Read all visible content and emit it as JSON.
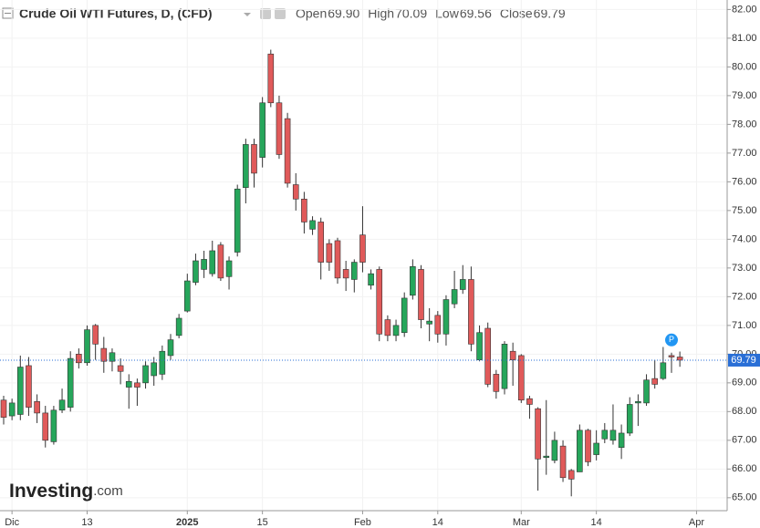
{
  "chart_data": {
    "type": "candlestick",
    "title": "Crude Oil WTI Futures, D, (CFD)",
    "header": [
      {
        "label": "Open",
        "value": "69.90"
      },
      {
        "label": "High",
        "value": "70.09"
      },
      {
        "label": "Low",
        "value": "69.56"
      },
      {
        "label": "Close",
        "value": "69.79"
      }
    ],
    "categories": [
      null,
      "Dic",
      null,
      null,
      null,
      null,
      null,
      null,
      null,
      null,
      "13",
      null,
      null,
      null,
      null,
      null,
      null,
      null,
      null,
      null,
      null,
      null,
      "2025",
      null,
      null,
      null,
      null,
      null,
      null,
      null,
      null,
      "15",
      null,
      null,
      null,
      null,
      null,
      null,
      null,
      null,
      null,
      null,
      null,
      "Feb",
      null,
      null,
      null,
      null,
      null,
      null,
      null,
      null,
      "14",
      null,
      null,
      null,
      null,
      null,
      null,
      null,
      null,
      null,
      "Mar",
      null,
      null,
      null,
      null,
      null,
      null,
      null,
      null,
      "14",
      null,
      null,
      null,
      null,
      null,
      null,
      null,
      null,
      null,
      null,
      null,
      "Apr"
    ],
    "open": [
      68.4,
      67.85,
      67.9,
      69.6,
      68.35,
      67.95,
      66.95,
      68.05,
      68.15,
      70.0,
      69.7,
      71.0,
      70.2,
      69.75,
      69.6,
      68.85,
      69.0,
      69.0,
      69.25,
      69.3,
      69.95,
      70.65,
      71.5,
      72.5,
      72.95,
      72.8,
      73.8,
      72.7,
      73.55,
      75.8,
      77.3,
      76.85,
      80.45,
      78.75,
      78.2,
      75.9,
      75.4,
      74.35,
      74.6,
      73.85,
      73.95,
      72.95,
      72.6,
      74.15,
      72.4,
      72.95,
      71.2,
      70.65,
      70.75,
      72.05,
      72.95,
      71.05,
      71.35,
      70.7,
      71.75,
      72.25,
      72.6,
      69.8,
      70.9,
      69.3,
      68.8,
      70.1,
      69.95,
      68.45,
      68.1,
      66.4,
      66.3,
      66.8,
      65.95,
      65.9,
      67.35,
      66.5,
      67.05,
      67.0,
      66.75,
      67.25,
      68.3,
      68.3,
      69.15,
      69.15,
      69.95,
      69.9,
      null,
      null
    ],
    "high": [
      68.55,
      68.45,
      69.95,
      69.9,
      68.6,
      68.2,
      68.2,
      68.8,
      70.1,
      70.2,
      71.0,
      71.05,
      70.6,
      70.2,
      69.85,
      69.3,
      69.15,
      69.75,
      69.9,
      70.3,
      70.7,
      71.4,
      72.8,
      73.5,
      73.6,
      73.95,
      73.9,
      73.4,
      75.9,
      77.5,
      77.5,
      78.95,
      80.6,
      79.0,
      78.4,
      76.3,
      75.65,
      74.8,
      74.75,
      74.0,
      74.05,
      73.25,
      73.3,
      75.15,
      72.95,
      73.05,
      71.35,
      71.2,
      72.15,
      73.3,
      73.1,
      71.6,
      71.5,
      72.05,
      72.9,
      73.1,
      73.05,
      71.0,
      71.1,
      69.45,
      70.45,
      70.4,
      70.0,
      68.55,
      68.15,
      68.4,
      67.3,
      67.0,
      66.0,
      67.55,
      67.4,
      67.35,
      67.6,
      68.25,
      67.55,
      68.5,
      68.6,
      69.3,
      69.8,
      70.25,
      70.05,
      70.09,
      null,
      null
    ],
    "low": [
      67.55,
      67.7,
      67.7,
      67.85,
      67.6,
      66.75,
      66.85,
      67.95,
      68.0,
      69.5,
      69.6,
      69.8,
      69.35,
      69.4,
      68.95,
      68.1,
      68.2,
      68.8,
      68.9,
      69.1,
      69.8,
      70.55,
      71.45,
      72.4,
      72.65,
      72.7,
      72.55,
      72.25,
      73.4,
      75.25,
      75.8,
      76.5,
      78.6,
      76.8,
      75.8,
      75.0,
      74.2,
      74.15,
      72.6,
      72.9,
      72.45,
      72.2,
      72.15,
      72.85,
      72.25,
      70.45,
      70.45,
      70.45,
      70.6,
      71.9,
      70.9,
      70.45,
      70.4,
      70.3,
      71.6,
      72.1,
      70.1,
      69.75,
      68.85,
      68.45,
      68.6,
      68.9,
      68.3,
      67.75,
      65.25,
      65.8,
      66.2,
      65.55,
      65.05,
      65.9,
      66.1,
      66.3,
      66.9,
      66.85,
      66.35,
      67.15,
      67.5,
      68.2,
      68.8,
      69.1,
      69.35,
      69.56,
      null,
      null
    ],
    "close": [
      67.8,
      68.3,
      69.55,
      68.15,
      67.95,
      67.0,
      68.05,
      68.4,
      69.85,
      69.7,
      70.85,
      70.35,
      69.75,
      70.05,
      69.4,
      69.05,
      68.85,
      69.6,
      69.7,
      70.1,
      70.5,
      71.25,
      72.55,
      73.25,
      73.3,
      73.6,
      72.65,
      73.25,
      75.75,
      77.3,
      76.3,
      78.75,
      78.75,
      76.95,
      75.95,
      75.4,
      74.6,
      74.65,
      73.2,
      73.2,
      72.65,
      72.65,
      73.2,
      73.2,
      72.8,
      70.7,
      70.65,
      71.0,
      71.95,
      73.05,
      71.2,
      71.15,
      70.7,
      71.9,
      72.25,
      72.6,
      70.35,
      70.75,
      68.95,
      68.7,
      70.35,
      69.8,
      68.4,
      68.25,
      66.35,
      66.45,
      67.0,
      65.7,
      65.65,
      67.35,
      66.25,
      66.9,
      67.35,
      67.35,
      67.25,
      68.25,
      68.35,
      69.1,
      68.95,
      69.7,
      69.9,
      69.79,
      null,
      null
    ],
    "up_color": "#26a65b",
    "down_color": "#e05a5a",
    "last_price": 69.79,
    "marker": "P",
    "ylim": [
      64.55,
      82.33
    ],
    "yticks": [
      {
        "value": 65,
        "label": "65.00"
      },
      {
        "value": 66,
        "label": "66.00"
      },
      {
        "value": 67,
        "label": "67.00"
      },
      {
        "value": 68,
        "label": "68.00"
      },
      {
        "value": 69,
        "label": "69.00"
      },
      {
        "value": 70,
        "label": "70.00"
      },
      {
        "value": 71,
        "label": "71.00"
      },
      {
        "value": 72,
        "label": "72.00"
      },
      {
        "value": 73,
        "label": "73.00"
      },
      {
        "value": 74,
        "label": "74.00"
      },
      {
        "value": 75,
        "label": "75.00"
      },
      {
        "value": 76,
        "label": "76.00"
      },
      {
        "value": 77,
        "label": "77.00"
      },
      {
        "value": 78,
        "label": "78.00"
      },
      {
        "value": 79,
        "label": "79.00"
      },
      {
        "value": 80,
        "label": "80.00"
      },
      {
        "value": 81,
        "label": "81.00"
      },
      {
        "value": 82,
        "label": "82.00"
      }
    ],
    "grid": true,
    "watermark": [
      "Investing",
      ".com"
    ]
  }
}
